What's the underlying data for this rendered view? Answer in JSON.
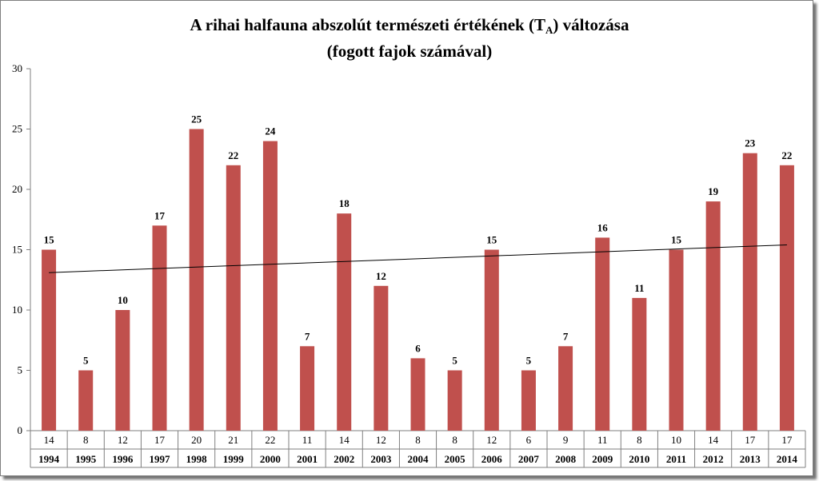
{
  "title": {
    "line1_pre": "A rihai halfauna  abszolút természeti értékének (T",
    "line1_sub": "A",
    "line1_post": ") változása",
    "line2": "(fogott fajok számával)"
  },
  "colors": {
    "bar": "#c0504d",
    "trend": "#000000",
    "axis": "#7f7f7f"
  },
  "chart_data": {
    "type": "bar",
    "title": "A rihai halfauna  abszolút természeti értékének (TA) változása (fogott fajok számával)",
    "categories": [
      "1994",
      "1995",
      "1996",
      "1997",
      "1998",
      "1999",
      "2000",
      "2001",
      "2002",
      "2003",
      "2004",
      "2005",
      "2006",
      "2007",
      "2008",
      "2009",
      "2010",
      "2011",
      "2012",
      "2013",
      "2014"
    ],
    "values": [
      15,
      5,
      10,
      17,
      25,
      22,
      24,
      7,
      18,
      12,
      6,
      5,
      15,
      5,
      7,
      16,
      11,
      15,
      19,
      23,
      22
    ],
    "species_counts": [
      14,
      8,
      12,
      17,
      20,
      21,
      22,
      11,
      14,
      12,
      8,
      8,
      12,
      6,
      9,
      11,
      8,
      10,
      14,
      17,
      17
    ],
    "ylim": [
      0,
      30
    ],
    "yticks": [
      0,
      5,
      10,
      15,
      20,
      25,
      30
    ],
    "trendline": {
      "type": "linear",
      "start": 13.1,
      "end": 15.4
    },
    "grid": false,
    "legend": "none"
  }
}
